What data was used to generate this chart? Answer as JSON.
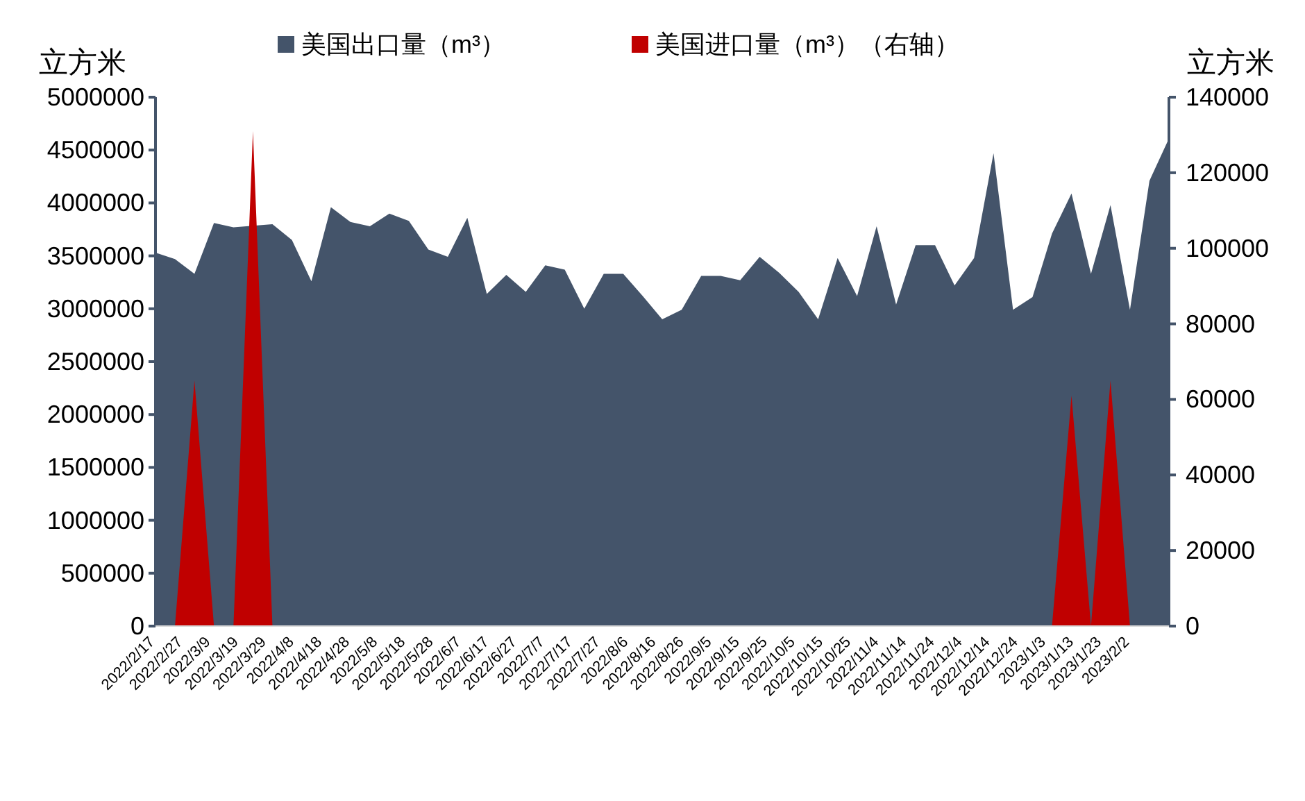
{
  "chart_data": {
    "type": "area",
    "ylabel": "立方米",
    "y2label": "立方米",
    "legend": "top",
    "x": [
      "2022-02-17",
      "2022-02-24",
      "2022-03-03",
      "2022-03-10",
      "2022-03-17",
      "2022-03-24",
      "2022-03-31",
      "2022-04-07",
      "2022-04-14",
      "2022-04-21",
      "2022-04-28",
      "2022-05-05",
      "2022-05-12",
      "2022-05-19",
      "2022-05-26",
      "2022-06-02",
      "2022-06-09",
      "2022-06-16",
      "2022-06-23",
      "2022-06-30",
      "2022-07-07",
      "2022-07-14",
      "2022-07-21",
      "2022-07-28",
      "2022-08-04",
      "2022-08-11",
      "2022-08-18",
      "2022-08-25",
      "2022-09-01",
      "2022-09-08",
      "2022-09-15",
      "2022-09-22",
      "2022-09-29",
      "2022-10-06",
      "2022-10-13",
      "2022-10-20",
      "2022-10-27",
      "2022-11-03",
      "2022-11-10",
      "2022-11-17",
      "2022-11-24",
      "2022-12-01",
      "2022-12-08",
      "2022-12-15",
      "2022-12-22",
      "2022-12-29",
      "2023-01-05",
      "2023-01-12",
      "2023-01-19",
      "2023-01-26",
      "2023-02-02",
      "2023-02-09",
      "2023-02-16"
    ],
    "series": [
      {
        "name": "美国出口量（m³）",
        "color": "#44546a",
        "values": [
          3530000,
          3470000,
          3330000,
          3810000,
          3770000,
          null,
          3800000,
          3650000,
          3260000,
          3960000,
          3820000,
          3780000,
          3900000,
          3830000,
          3560000,
          3490000,
          3860000,
          3140000,
          3320000,
          3160000,
          3410000,
          3370000,
          3000000,
          3330000,
          3330000,
          3120000,
          2900000,
          2990000,
          3310000,
          3310000,
          3270000,
          3490000,
          3340000,
          3160000,
          2900000,
          3480000,
          3120000,
          3780000,
          3040000,
          3600000,
          3600000,
          3220000,
          3480000,
          4470000,
          2990000,
          3110000,
          3710000,
          4090000,
          3330000,
          3980000,
          2990000,
          4210000,
          4610000
        ]
      },
      {
        "name": "美国进口量（m³）（右轴）",
        "color": "#c00000",
        "axis": "y2",
        "values": [
          0,
          0,
          65000,
          0,
          0,
          131000,
          0,
          0,
          0,
          0,
          0,
          0,
          0,
          0,
          0,
          0,
          0,
          0,
          0,
          0,
          0,
          0,
          0,
          0,
          0,
          0,
          0,
          0,
          0,
          0,
          0,
          0,
          0,
          0,
          0,
          0,
          0,
          0,
          0,
          0,
          0,
          0,
          0,
          0,
          0,
          0,
          0,
          61000,
          0,
          65000,
          0,
          0,
          0
        ]
      }
    ],
    "xlim": [
      "2022-02-17",
      "2023-02-16"
    ],
    "xticks": [
      {
        "value": "2022-02-17",
        "label": "2022/2/17"
      },
      {
        "value": "2022-02-27",
        "label": "2022/2/27"
      },
      {
        "value": "2022-03-09",
        "label": "2022/3/9"
      },
      {
        "value": "2022-03-19",
        "label": "2022/3/19"
      },
      {
        "value": "2022-03-29",
        "label": "2022/3/29"
      },
      {
        "value": "2022-04-08",
        "label": "2022/4/8"
      },
      {
        "value": "2022-04-18",
        "label": "2022/4/18"
      },
      {
        "value": "2022-04-28",
        "label": "2022/4/28"
      },
      {
        "value": "2022-05-08",
        "label": "2022/5/8"
      },
      {
        "value": "2022-05-18",
        "label": "2022/5/18"
      },
      {
        "value": "2022-05-28",
        "label": "2022/5/28"
      },
      {
        "value": "2022-06-07",
        "label": "2022/6/7"
      },
      {
        "value": "2022-06-17",
        "label": "2022/6/17"
      },
      {
        "value": "2022-06-27",
        "label": "2022/6/27"
      },
      {
        "value": "2022-07-07",
        "label": "2022/7/7"
      },
      {
        "value": "2022-07-17",
        "label": "2022/7/17"
      },
      {
        "value": "2022-07-27",
        "label": "2022/7/27"
      },
      {
        "value": "2022-08-06",
        "label": "2022/8/6"
      },
      {
        "value": "2022-08-16",
        "label": "2022/8/16"
      },
      {
        "value": "2022-08-26",
        "label": "2022/8/26"
      },
      {
        "value": "2022-09-05",
        "label": "2022/9/5"
      },
      {
        "value": "2022-09-15",
        "label": "2022/9/15"
      },
      {
        "value": "2022-09-25",
        "label": "2022/9/25"
      },
      {
        "value": "2022-10-05",
        "label": "2022/10/5"
      },
      {
        "value": "2022-10-15",
        "label": "2022/10/15"
      },
      {
        "value": "2022-10-25",
        "label": "2022/10/25"
      },
      {
        "value": "2022-11-04",
        "label": "2022/11/4"
      },
      {
        "value": "2022-11-14",
        "label": "2022/11/14"
      },
      {
        "value": "2022-11-24",
        "label": "2022/11/24"
      },
      {
        "value": "2022-12-04",
        "label": "2022/12/4"
      },
      {
        "value": "2022-12-14",
        "label": "2022/12/14"
      },
      {
        "value": "2022-12-24",
        "label": "2022/12/24"
      },
      {
        "value": "2023-01-03",
        "label": "2023/1/3"
      },
      {
        "value": "2023-01-13",
        "label": "2023/1/13"
      },
      {
        "value": "2023-01-23",
        "label": "2023/1/23"
      },
      {
        "value": "2023-02-02",
        "label": "2023/2/2"
      }
    ],
    "ylim": [
      0,
      5000000
    ],
    "yticks": [
      0,
      500000,
      1000000,
      1500000,
      2000000,
      2500000,
      3000000,
      3500000,
      4000000,
      4500000,
      5000000
    ],
    "y2lim": [
      0,
      140000
    ],
    "y2ticks": [
      0,
      20000,
      40000,
      60000,
      80000,
      100000,
      120000,
      140000
    ]
  }
}
